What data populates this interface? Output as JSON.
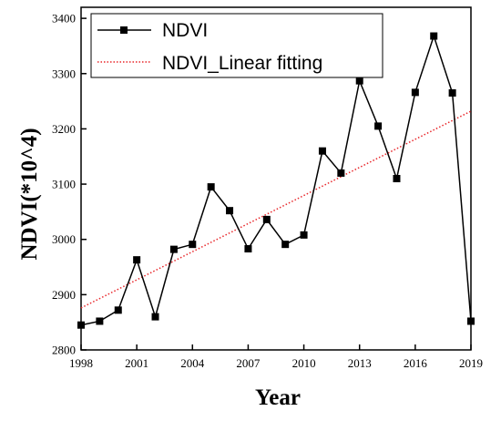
{
  "chart_data": {
    "type": "line",
    "xlabel": "Year",
    "ylabel": "NDVI(*10^4)",
    "xlim": [
      1998,
      2019
    ],
    "ylim": [
      2800,
      3420
    ],
    "xticks": [
      1998,
      2001,
      2004,
      2007,
      2010,
      2013,
      2016,
      2019
    ],
    "xtick_labels": [
      "1998",
      "2001",
      "2004",
      "2007",
      "2010",
      "2013",
      "2016",
      "2019"
    ],
    "yticks": [
      2800,
      2900,
      3000,
      3100,
      3200,
      3300,
      3400
    ],
    "ytick_labels": [
      "2800",
      "2900",
      "3000",
      "3100",
      "3200",
      "3300",
      "3400"
    ],
    "grid": false,
    "legend_position": "top-left",
    "series": [
      {
        "name": "NDVI",
        "style": "line-with-square-markers",
        "color": "#000000",
        "x": [
          1998,
          1999,
          2000,
          2001,
          2002,
          2003,
          2004,
          2005,
          2006,
          2007,
          2008,
          2009,
          2010,
          2011,
          2012,
          2013,
          2014,
          2015,
          2016,
          2017,
          2018,
          2019
        ],
        "y": [
          2845,
          2852,
          2872,
          2963,
          2860,
          2982,
          2991,
          3095,
          3052,
          2983,
          3036,
          2991,
          3008,
          3160,
          3120,
          3287,
          3205,
          3110,
          3266,
          3368,
          3265,
          2852
        ]
      },
      {
        "name": "NDVI_Linear fitting",
        "style": "dotted",
        "color": "#e8262a",
        "x": [
          1998,
          2019
        ],
        "y": [
          2876,
          3232
        ]
      }
    ]
  }
}
